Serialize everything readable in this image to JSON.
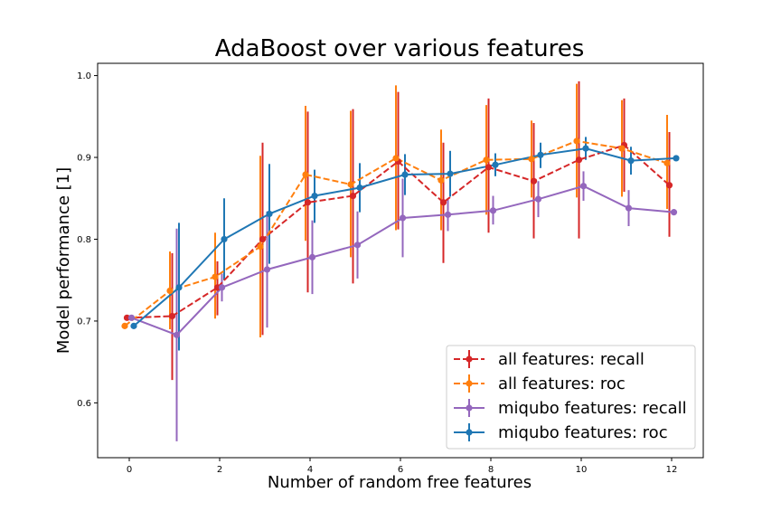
{
  "chart_data": {
    "type": "line",
    "title": "AdaBoost over various features",
    "xlabel": "Number of random free features",
    "ylabel": "Model performance [1]",
    "xlim": [
      -0.7,
      12.7
    ],
    "ylim": [
      0.533,
      1.015
    ],
    "xticks": [
      "0",
      "2",
      "4",
      "6",
      "8",
      "10",
      "12"
    ],
    "yticks": [
      "0.6",
      "0.7",
      "0.8",
      "0.9",
      "1.0"
    ],
    "grid": false,
    "legend_position": "lower-right",
    "series": [
      {
        "name": "all features: recall",
        "color": "#d62728",
        "linestyle": "dashed",
        "offset": -0.05,
        "x": [
          0,
          1,
          2,
          3,
          4,
          5,
          6,
          7,
          8,
          9,
          10,
          11,
          12
        ],
        "y": [
          0.704,
          0.706,
          0.741,
          0.8,
          0.845,
          0.853,
          0.895,
          0.845,
          0.888,
          0.871,
          0.897,
          0.915,
          0.866
        ],
        "yerr_low": [
          0.704,
          0.628,
          0.707,
          0.683,
          0.735,
          0.746,
          0.812,
          0.771,
          0.808,
          0.801,
          0.801,
          0.858,
          0.803
        ],
        "yerr_high": [
          0.704,
          0.783,
          0.773,
          0.918,
          0.956,
          0.959,
          0.98,
          0.918,
          0.972,
          0.942,
          0.993,
          0.972,
          0.931
        ]
      },
      {
        "name": "all features: roc",
        "color": "#ff7f0e",
        "linestyle": "dashed",
        "offset": -0.1,
        "x": [
          0,
          1,
          2,
          3,
          4,
          5,
          6,
          7,
          8,
          9,
          10,
          11,
          12
        ],
        "y": [
          0.694,
          0.737,
          0.754,
          0.791,
          0.879,
          0.867,
          0.899,
          0.872,
          0.897,
          0.898,
          0.92,
          0.911,
          0.893
        ],
        "yerr_low": [
          0.694,
          0.69,
          0.703,
          0.68,
          0.798,
          0.778,
          0.811,
          0.811,
          0.83,
          0.851,
          0.851,
          0.852,
          0.837
        ],
        "yerr_high": [
          0.694,
          0.785,
          0.808,
          0.902,
          0.963,
          0.957,
          0.988,
          0.934,
          0.964,
          0.945,
          0.99,
          0.97,
          0.952
        ]
      },
      {
        "name": "miqubo features: recall",
        "color": "#9467bd",
        "linestyle": "solid",
        "offset": 0.05,
        "x": [
          0,
          1,
          2,
          3,
          4,
          5,
          6,
          7,
          8,
          9,
          10,
          11,
          12
        ],
        "y": [
          0.704,
          0.683,
          0.741,
          0.763,
          0.778,
          0.793,
          0.826,
          0.83,
          0.835,
          0.849,
          0.865,
          0.838,
          0.833
        ],
        "yerr_low": [
          0.704,
          0.553,
          0.724,
          0.692,
          0.733,
          0.752,
          0.778,
          0.81,
          0.818,
          0.827,
          0.847,
          0.816,
          0.833
        ],
        "yerr_high": [
          0.704,
          0.813,
          0.758,
          0.834,
          0.823,
          0.834,
          0.874,
          0.85,
          0.853,
          0.871,
          0.883,
          0.86,
          0.833
        ]
      },
      {
        "name": "miqubo features: roc",
        "color": "#1f77b4",
        "linestyle": "solid",
        "offset": 0.1,
        "x": [
          0,
          1,
          2,
          3,
          4,
          5,
          6,
          7,
          8,
          9,
          10,
          11,
          12
        ],
        "y": [
          0.694,
          0.741,
          0.8,
          0.831,
          0.853,
          0.863,
          0.879,
          0.88,
          0.891,
          0.903,
          0.911,
          0.896,
          0.899
        ],
        "yerr_low": [
          0.694,
          0.664,
          0.75,
          0.77,
          0.82,
          0.833,
          0.854,
          0.852,
          0.877,
          0.887,
          0.897,
          0.879,
          0.899
        ],
        "yerr_high": [
          0.694,
          0.82,
          0.85,
          0.892,
          0.885,
          0.893,
          0.904,
          0.908,
          0.905,
          0.918,
          0.925,
          0.913,
          0.899
        ]
      }
    ]
  }
}
